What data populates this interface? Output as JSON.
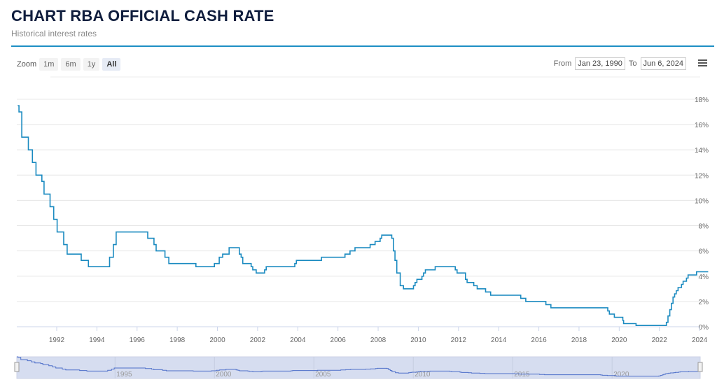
{
  "header": {
    "title": "CHART RBA OFFICIAL CASH RATE",
    "subtitle": "Historical interest rates"
  },
  "zoom": {
    "label": "Zoom",
    "buttons": [
      "1m",
      "6m",
      "1y",
      "All"
    ],
    "active": "All"
  },
  "range": {
    "from_label": "From",
    "from": "Jan 23, 1990",
    "to_label": "To",
    "to": "Jun 6, 2024"
  },
  "colors": {
    "line": "#1a8ac0",
    "navigator": "#4d6fc9",
    "accent": "#1d8fc4"
  },
  "chart_data": {
    "type": "line",
    "title": "CHART RBA OFFICIAL CASH RATE",
    "xlabel": "",
    "ylabel": "",
    "ylim": [
      0,
      18
    ],
    "xlim": [
      1990.06,
      2024.43
    ],
    "yticks": [
      "0%",
      "2%",
      "4%",
      "6%",
      "8%",
      "10%",
      "12%",
      "14%",
      "16%",
      "18%"
    ],
    "xticks": [
      "1992",
      "1994",
      "1996",
      "1998",
      "2000",
      "2002",
      "2004",
      "2006",
      "2008",
      "2010",
      "2012",
      "2014",
      "2016",
      "2018",
      "2020",
      "2022",
      "2024"
    ],
    "navigator_ticks": [
      "1995",
      "2000",
      "2005",
      "2010",
      "2015",
      "2020"
    ],
    "step": true,
    "series": [
      {
        "name": "Cash rate",
        "points": [
          [
            1990.06,
            17.5
          ],
          [
            1990.12,
            17
          ],
          [
            1990.26,
            15
          ],
          [
            1990.59,
            14
          ],
          [
            1990.79,
            13
          ],
          [
            1990.97,
            12
          ],
          [
            1991.26,
            11.5
          ],
          [
            1991.37,
            10.5
          ],
          [
            1991.67,
            9.5
          ],
          [
            1991.85,
            8.5
          ],
          [
            1992.02,
            7.5
          ],
          [
            1992.35,
            6.5
          ],
          [
            1992.52,
            5.75
          ],
          [
            1993.22,
            5.25
          ],
          [
            1993.58,
            4.75
          ],
          [
            1994.63,
            5.5
          ],
          [
            1994.82,
            6.5
          ],
          [
            1994.96,
            7.5
          ],
          [
            1996.53,
            7
          ],
          [
            1996.84,
            6.5
          ],
          [
            1996.95,
            6
          ],
          [
            1997.39,
            5.5
          ],
          [
            1997.58,
            5
          ],
          [
            1998.93,
            4.75
          ],
          [
            1999.85,
            5
          ],
          [
            2000.09,
            5.5
          ],
          [
            2000.26,
            5.75
          ],
          [
            2000.58,
            6.25
          ],
          [
            2001.09,
            5.75
          ],
          [
            2001.18,
            5.5
          ],
          [
            2001.26,
            5
          ],
          [
            2001.68,
            4.75
          ],
          [
            2001.76,
            4.5
          ],
          [
            2001.93,
            4.25
          ],
          [
            2002.35,
            4.5
          ],
          [
            2002.43,
            4.75
          ],
          [
            2003.85,
            5
          ],
          [
            2003.93,
            5.25
          ],
          [
            2005.18,
            5.5
          ],
          [
            2006.35,
            5.75
          ],
          [
            2006.6,
            6
          ],
          [
            2006.85,
            6.25
          ],
          [
            2007.6,
            6.5
          ],
          [
            2007.85,
            6.75
          ],
          [
            2008.1,
            7
          ],
          [
            2008.18,
            7.25
          ],
          [
            2008.68,
            7
          ],
          [
            2008.76,
            6
          ],
          [
            2008.84,
            5.25
          ],
          [
            2008.93,
            4.25
          ],
          [
            2009.1,
            3.25
          ],
          [
            2009.26,
            3
          ],
          [
            2009.76,
            3.25
          ],
          [
            2009.84,
            3.5
          ],
          [
            2009.93,
            3.75
          ],
          [
            2010.18,
            4
          ],
          [
            2010.26,
            4.25
          ],
          [
            2010.35,
            4.5
          ],
          [
            2010.84,
            4.75
          ],
          [
            2011.84,
            4.5
          ],
          [
            2011.93,
            4.25
          ],
          [
            2012.35,
            3.75
          ],
          [
            2012.43,
            3.5
          ],
          [
            2012.76,
            3.25
          ],
          [
            2012.93,
            3
          ],
          [
            2013.35,
            2.75
          ],
          [
            2013.6,
            2.5
          ],
          [
            2015.1,
            2.25
          ],
          [
            2015.35,
            2
          ],
          [
            2016.35,
            1.75
          ],
          [
            2016.6,
            1.5
          ],
          [
            2019.43,
            1.25
          ],
          [
            2019.51,
            1
          ],
          [
            2019.76,
            0.75
          ],
          [
            2020.18,
            0.5
          ],
          [
            2020.22,
            0.25
          ],
          [
            2020.84,
            0.1
          ],
          [
            2022.35,
            0.35
          ],
          [
            2022.43,
            0.85
          ],
          [
            2022.52,
            1.35
          ],
          [
            2022.6,
            1.85
          ],
          [
            2022.68,
            2.35
          ],
          [
            2022.76,
            2.6
          ],
          [
            2022.84,
            2.85
          ],
          [
            2022.93,
            3.1
          ],
          [
            2023.1,
            3.35
          ],
          [
            2023.18,
            3.6
          ],
          [
            2023.35,
            3.85
          ],
          [
            2023.43,
            4.1
          ],
          [
            2023.85,
            4.35
          ],
          [
            2024.43,
            4.35
          ]
        ]
      }
    ]
  }
}
